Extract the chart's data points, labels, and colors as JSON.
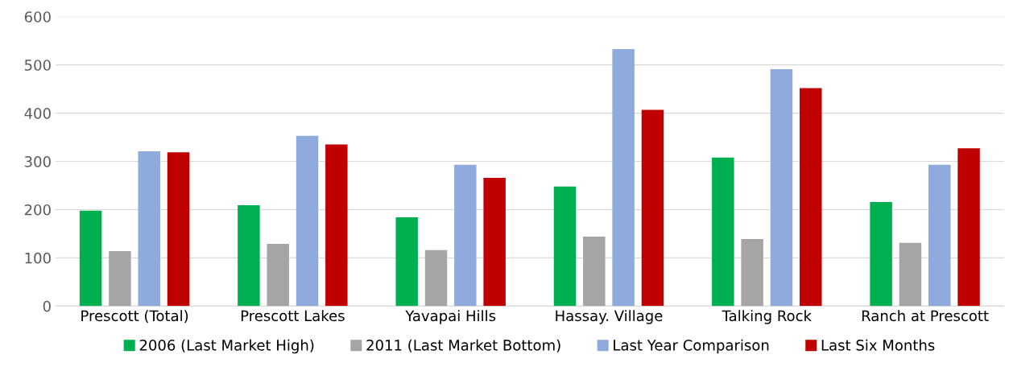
{
  "chart_data": {
    "type": "bar",
    "categories": [
      "Prescott (Total)",
      "Prescott Lakes",
      "Yavapai Hills",
      "Hassay. Village",
      "Talking Rock",
      "Ranch at Prescott"
    ],
    "series": [
      {
        "name": "2006 (Last Market High)",
        "color": "#00b050",
        "values": [
          198,
          209,
          184,
          248,
          308,
          216
        ]
      },
      {
        "name": "2011 (Last Market Bottom)",
        "color": "#a5a5a5",
        "values": [
          114,
          129,
          116,
          144,
          139,
          131
        ]
      },
      {
        "name": "Last Year Comparison",
        "color": "#8faadc",
        "values": [
          321,
          353,
          293,
          533,
          491,
          293
        ]
      },
      {
        "name": "Last Six Months",
        "color": "#c00000",
        "values": [
          319,
          335,
          266,
          407,
          452,
          327
        ]
      }
    ],
    "ylim": [
      0,
      600
    ],
    "yticks": [
      0,
      100,
      200,
      300,
      400,
      500,
      600
    ],
    "grid": "y",
    "legend": "bottom"
  }
}
